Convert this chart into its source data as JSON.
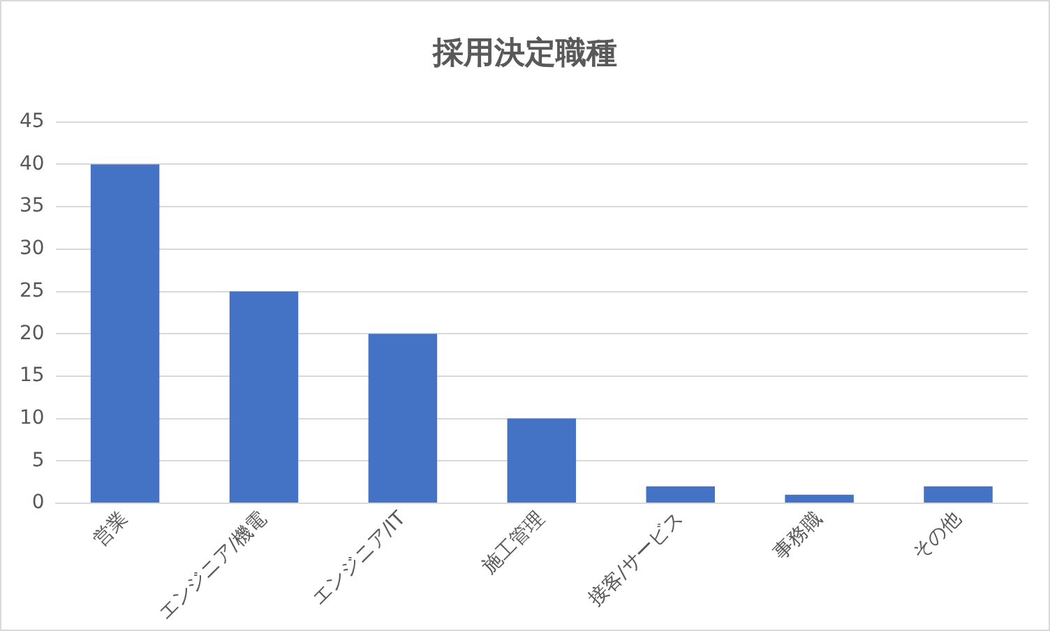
{
  "chart_data": {
    "type": "bar",
    "title": "採用決定職種",
    "categories": [
      "営業",
      "エンジニア/機電",
      "エンジニア/IT",
      "施工管理",
      "接客/サービス",
      "事務職",
      "その他"
    ],
    "values": [
      40,
      25,
      20,
      10,
      2,
      1,
      2
    ],
    "color": "#4472c4",
    "ylim": [
      0,
      45
    ],
    "yticks": [
      0,
      5,
      10,
      15,
      20,
      25,
      30,
      35,
      40,
      45
    ],
    "grid": "y",
    "legend": false
  }
}
